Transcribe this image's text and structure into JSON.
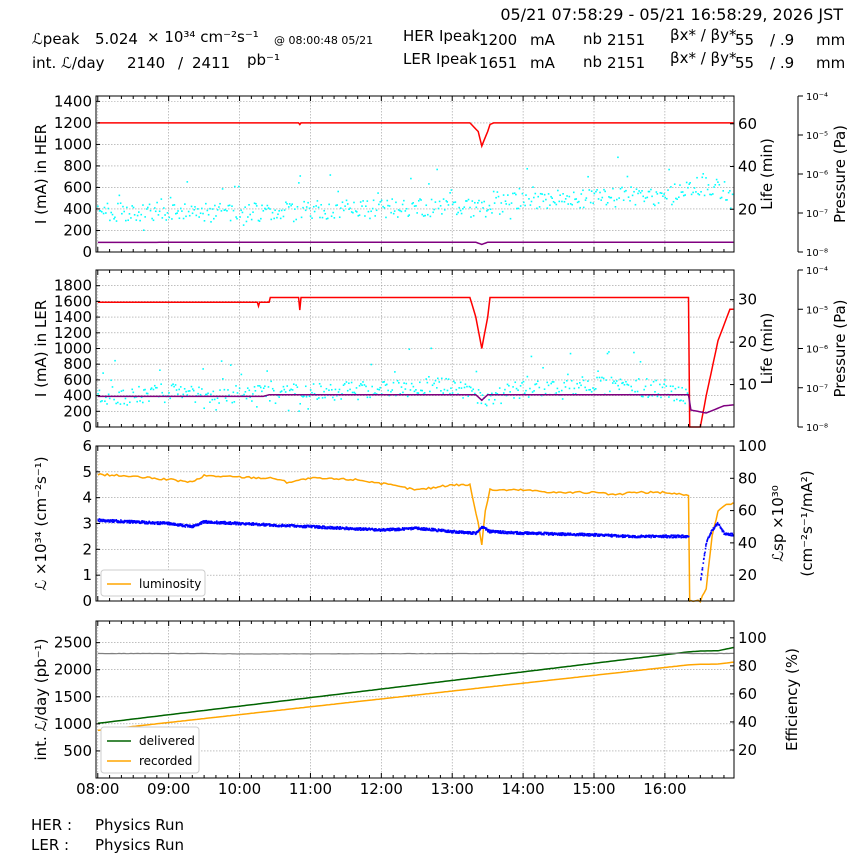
{
  "header": {
    "time_range": "05/21 07:58:29 - 05/21 16:58:29, 2026 JST",
    "lpeak_label": "ℒpeak",
    "lpeak_value": "5.024",
    "lpeak_unit": "× 10³⁴ cm⁻²s⁻¹",
    "lpeak_time": "@ 08:00:48 05/21",
    "intl_label": "int. ℒ/day",
    "intl_recorded": "2140",
    "intl_slash": "/",
    "intl_delivered": "2411",
    "intl_unit": "pb⁻¹",
    "her_label": "HER Ipeak",
    "her_current": "1200",
    "her_unit": "mA",
    "her_nb_label": "nb",
    "her_nb": "2151",
    "her_beta_label": "βx* / βy*",
    "her_beta_x": "55",
    "her_beta_y": "/ .9",
    "her_beta_unit": "mm",
    "ler_label": "LER Ipeak",
    "ler_current": "1651",
    "ler_unit": "mA",
    "ler_nb_label": "nb",
    "ler_nb": "2151",
    "ler_beta_label": "βx* / βy*",
    "ler_beta_x": "55",
    "ler_beta_y": "/ .9",
    "ler_beta_unit": "mm"
  },
  "footer": {
    "her_label": "HER :",
    "her_status": "Physics Run",
    "ler_label": "LER :",
    "ler_status": "Physics Run"
  },
  "chart_data": [
    {
      "type": "line",
      "id": "her",
      "ylabel": "I (mA) in HER",
      "ylabel_right": "Life (min)",
      "ylabel_pressure": "Pressure (Pa)",
      "ylim": [
        0,
        1450
      ],
      "yticks": [
        0,
        200,
        400,
        600,
        800,
        1000,
        1200,
        1400
      ],
      "ylim_right": [
        0,
        73
      ],
      "yticks_right": [
        20,
        40,
        60
      ],
      "pressure_ticks": [
        "10⁻⁸",
        "10⁻⁷",
        "10⁻⁶",
        "10⁻⁵",
        "10⁻⁴"
      ],
      "grid": true,
      "series": [
        {
          "name": "",
          "role": "current",
          "color": "#ff0000",
          "axis": "left",
          "x": [
            "08:00",
            "10:50",
            "10:51",
            "10:52",
            "13:15",
            "13:22",
            "13:25",
            "13:30",
            "13:32",
            "13:35",
            "16:58"
          ],
          "y": [
            1200,
            1200,
            1185,
            1200,
            1200,
            1120,
            985,
            1120,
            1185,
            1200,
            1200
          ]
        },
        {
          "name": "",
          "role": "lifetime",
          "color": "#00ffff",
          "axis": "right",
          "marker": "dots",
          "x": [
            "08:00",
            "09:00",
            "10:00",
            "11:00",
            "12:00",
            "13:00",
            "13:20",
            "14:00",
            "15:00",
            "16:00",
            "16:30",
            "16:58"
          ],
          "y": [
            19,
            18,
            18.5,
            19.5,
            20.5,
            21,
            20,
            24,
            25,
            26,
            31,
            28
          ]
        },
        {
          "name": "",
          "role": "pressure",
          "color": "#800080",
          "axis": "right",
          "x": [
            "08:00",
            "13:20",
            "13:25",
            "13:30",
            "16:58"
          ],
          "y": [
            4.5,
            4.6,
            3.5,
            4.6,
            4.6
          ]
        }
      ]
    },
    {
      "type": "line",
      "id": "ler",
      "ylabel": "I (mA) in LER",
      "ylabel_right": "Life (min)",
      "ylabel_pressure": "Pressure (Pa)",
      "ylim": [
        0,
        2000
      ],
      "yticks": [
        0,
        200,
        400,
        600,
        800,
        1000,
        1200,
        1400,
        1600,
        1800
      ],
      "ylim_right": [
        0,
        37
      ],
      "yticks_right": [
        10,
        20,
        30
      ],
      "pressure_ticks": [
        "10⁻⁸",
        "10⁻⁷",
        "10⁻⁶",
        "10⁻⁵",
        "10⁻⁴"
      ],
      "grid": true,
      "series": [
        {
          "name": "",
          "role": "current",
          "color": "#ff0000",
          "axis": "left",
          "x": [
            "08:00",
            "10:15",
            "10:16",
            "10:17",
            "10:25",
            "10:26",
            "10:50",
            "10:51",
            "10:52",
            "13:15",
            "13:20",
            "13:25",
            "13:30",
            "13:32",
            "13:34",
            "16:20",
            "16:21",
            "16:22",
            "16:30",
            "16:35",
            "16:45",
            "16:50",
            "16:55",
            "16:58"
          ],
          "y": [
            1590,
            1590,
            1540,
            1590,
            1590,
            1650,
            1650,
            1490,
            1650,
            1650,
            1400,
            1000,
            1400,
            1650,
            1650,
            1650,
            0,
            0,
            0,
            400,
            1100,
            1300,
            1500,
            1500
          ]
        },
        {
          "name": "",
          "role": "lifetime",
          "color": "#00ffff",
          "axis": "right",
          "marker": "dots",
          "x": [
            "08:00",
            "09:00",
            "10:00",
            "11:00",
            "12:00",
            "13:00",
            "13:30",
            "14:00",
            "15:00",
            "16:00",
            "16:20"
          ],
          "y": [
            7,
            8,
            7.5,
            8,
            9,
            10,
            7,
            9,
            10,
            9,
            7
          ]
        },
        {
          "name": "",
          "role": "pressure",
          "color": "#800080",
          "axis": "right",
          "x": [
            "08:00",
            "10:20",
            "10:25",
            "13:20",
            "13:25",
            "13:30",
            "16:20",
            "16:22",
            "16:35",
            "16:50",
            "16:58"
          ],
          "y": [
            7.2,
            7.2,
            7.6,
            7.6,
            6.3,
            7.6,
            7.6,
            4,
            3.3,
            5,
            5.2
          ]
        }
      ]
    },
    {
      "type": "line",
      "id": "lumi",
      "ylabel": "ℒ ×10³⁴ (cm⁻²s⁻¹)",
      "ylabel_right": "ℒsp ×10³⁰",
      "ylabel_right2": "(cm⁻²s⁻¹/mA²)",
      "ylim": [
        0,
        6
      ],
      "yticks": [
        0,
        1,
        2,
        3,
        4,
        5,
        6
      ],
      "ylim_right": [
        4,
        100
      ],
      "yticks_right": [
        20,
        40,
        60,
        80,
        100
      ],
      "grid": true,
      "legend": "bottom-left",
      "series": [
        {
          "name": "luminosity",
          "role": "luminosity",
          "color": "#ffa500",
          "axis": "left",
          "x": [
            "08:00",
            "08:20",
            "09:00",
            "09:20",
            "09:30",
            "10:30",
            "10:40",
            "11:00",
            "11:40",
            "12:00",
            "12:30",
            "13:00",
            "13:15",
            "13:22",
            "13:25",
            "13:28",
            "13:32",
            "14:00",
            "14:30",
            "15:00",
            "15:20",
            "15:30",
            "16:00",
            "16:20",
            "16:21",
            "16:22",
            "16:30",
            "16:35",
            "16:40",
            "16:45",
            "16:50",
            "16:58"
          ],
          "y": [
            4.9,
            4.85,
            4.7,
            4.6,
            4.85,
            4.75,
            4.6,
            4.75,
            4.7,
            4.55,
            4.3,
            4.5,
            4.5,
            3,
            2.2,
            3.5,
            4.3,
            4.3,
            4.2,
            4.2,
            4.1,
            4.2,
            4.2,
            4.1,
            0,
            0,
            0,
            0.5,
            2.5,
            3.5,
            3.7,
            3.8
          ]
        },
        {
          "name": "",
          "role": "specific-luminosity",
          "color": "#0000ff",
          "axis": "right",
          "marker": "dots",
          "x": [
            "08:00",
            "08:30",
            "09:00",
            "09:20",
            "09:30",
            "10:00",
            "11:00",
            "12:00",
            "12:30",
            "13:00",
            "13:20",
            "13:25",
            "13:32",
            "14:00",
            "15:00",
            "15:30",
            "16:00",
            "16:20"
          ],
          "y": [
            54,
            53,
            52,
            50,
            53,
            52,
            50,
            48,
            49,
            47,
            46,
            50,
            47,
            46,
            45,
            44,
            44,
            44
          ]
        },
        {
          "name": "",
          "role": "specific-luminosity-late",
          "color": "#0000ff",
          "axis": "right",
          "marker": "dots",
          "x": [
            "16:30",
            "16:35",
            "16:40",
            "16:45",
            "16:50",
            "16:58"
          ],
          "y": [
            15,
            40,
            48,
            52,
            46,
            45
          ]
        }
      ]
    },
    {
      "type": "line",
      "id": "intl",
      "ylabel": "int. ℒ/day (pb⁻¹)",
      "ylabel_right": "Efficiency (%)",
      "xlabel": "",
      "ylim": [
        0,
        2900
      ],
      "yticks": [
        500,
        1000,
        1500,
        2000,
        2500
      ],
      "ylim_right": [
        0,
        112
      ],
      "yticks_right": [
        20,
        40,
        60,
        80,
        100
      ],
      "x_ticks": [
        "08:00",
        "09:00",
        "10:00",
        "11:00",
        "12:00",
        "13:00",
        "14:00",
        "15:00",
        "16:00"
      ],
      "grid": true,
      "legend": "bottom-left",
      "series": [
        {
          "name": "delivered",
          "role": "delivered",
          "color": "#006400",
          "axis": "left",
          "x": [
            "08:00",
            "16:20",
            "16:30",
            "16:45",
            "16:58"
          ],
          "y": [
            1010,
            2330,
            2345,
            2350,
            2410
          ]
        },
        {
          "name": "recorded",
          "role": "recorded",
          "color": "#ffa500",
          "axis": "left",
          "x": [
            "08:00",
            "16:20",
            "16:30",
            "16:45",
            "16:58"
          ],
          "y": [
            880,
            2090,
            2100,
            2105,
            2140
          ]
        },
        {
          "name": "",
          "role": "efficiency",
          "color": "#808080",
          "axis": "right",
          "x": [
            "08:00",
            "09:30",
            "10:00",
            "16:00",
            "16:30",
            "16:58"
          ],
          "y": [
            88.8,
            88.8,
            88.5,
            89,
            88.8,
            88.9
          ]
        }
      ]
    }
  ]
}
